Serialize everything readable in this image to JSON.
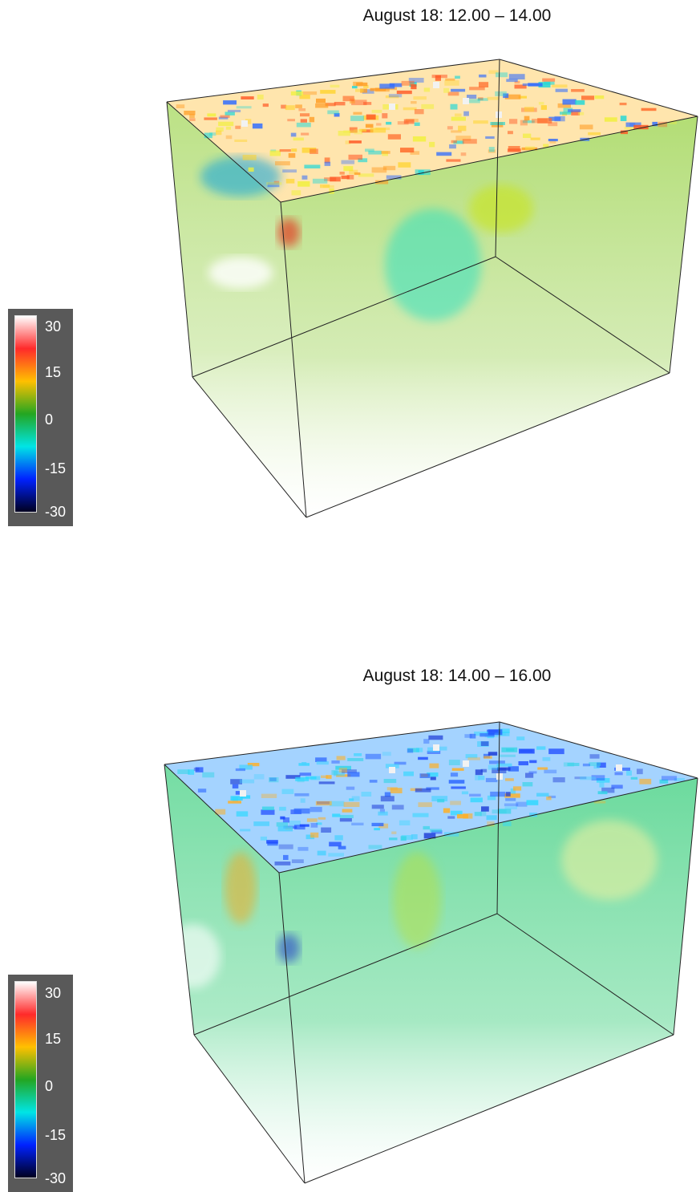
{
  "panels": [
    {
      "title": "August 18: 12.00 – 14.00",
      "top_colors": [
        "#ff6a2a",
        "#ff9b22",
        "#ffd431",
        "#f1f03c",
        "#ff5320",
        "#22d7d7",
        "#2e6bff"
      ],
      "body_color": "#8ccc3a"
    },
    {
      "title": "August 18: 14.00 – 16.00",
      "top_colors": [
        "#2c66ff",
        "#1c3ad6",
        "#32d4e6",
        "#ffaf22",
        "#2bd8ff",
        "#1845ff",
        "#4ad1ff"
      ],
      "body_color": "#2fcf6c"
    }
  ],
  "legend": {
    "ticks": [
      "30",
      "15",
      "0",
      "-15",
      "-30"
    ],
    "colors": [
      "#ffffff",
      "#ff2a2a",
      "#ffc000",
      "#23a621",
      "#00e5e5",
      "#0022ff",
      "#000020"
    ]
  }
}
